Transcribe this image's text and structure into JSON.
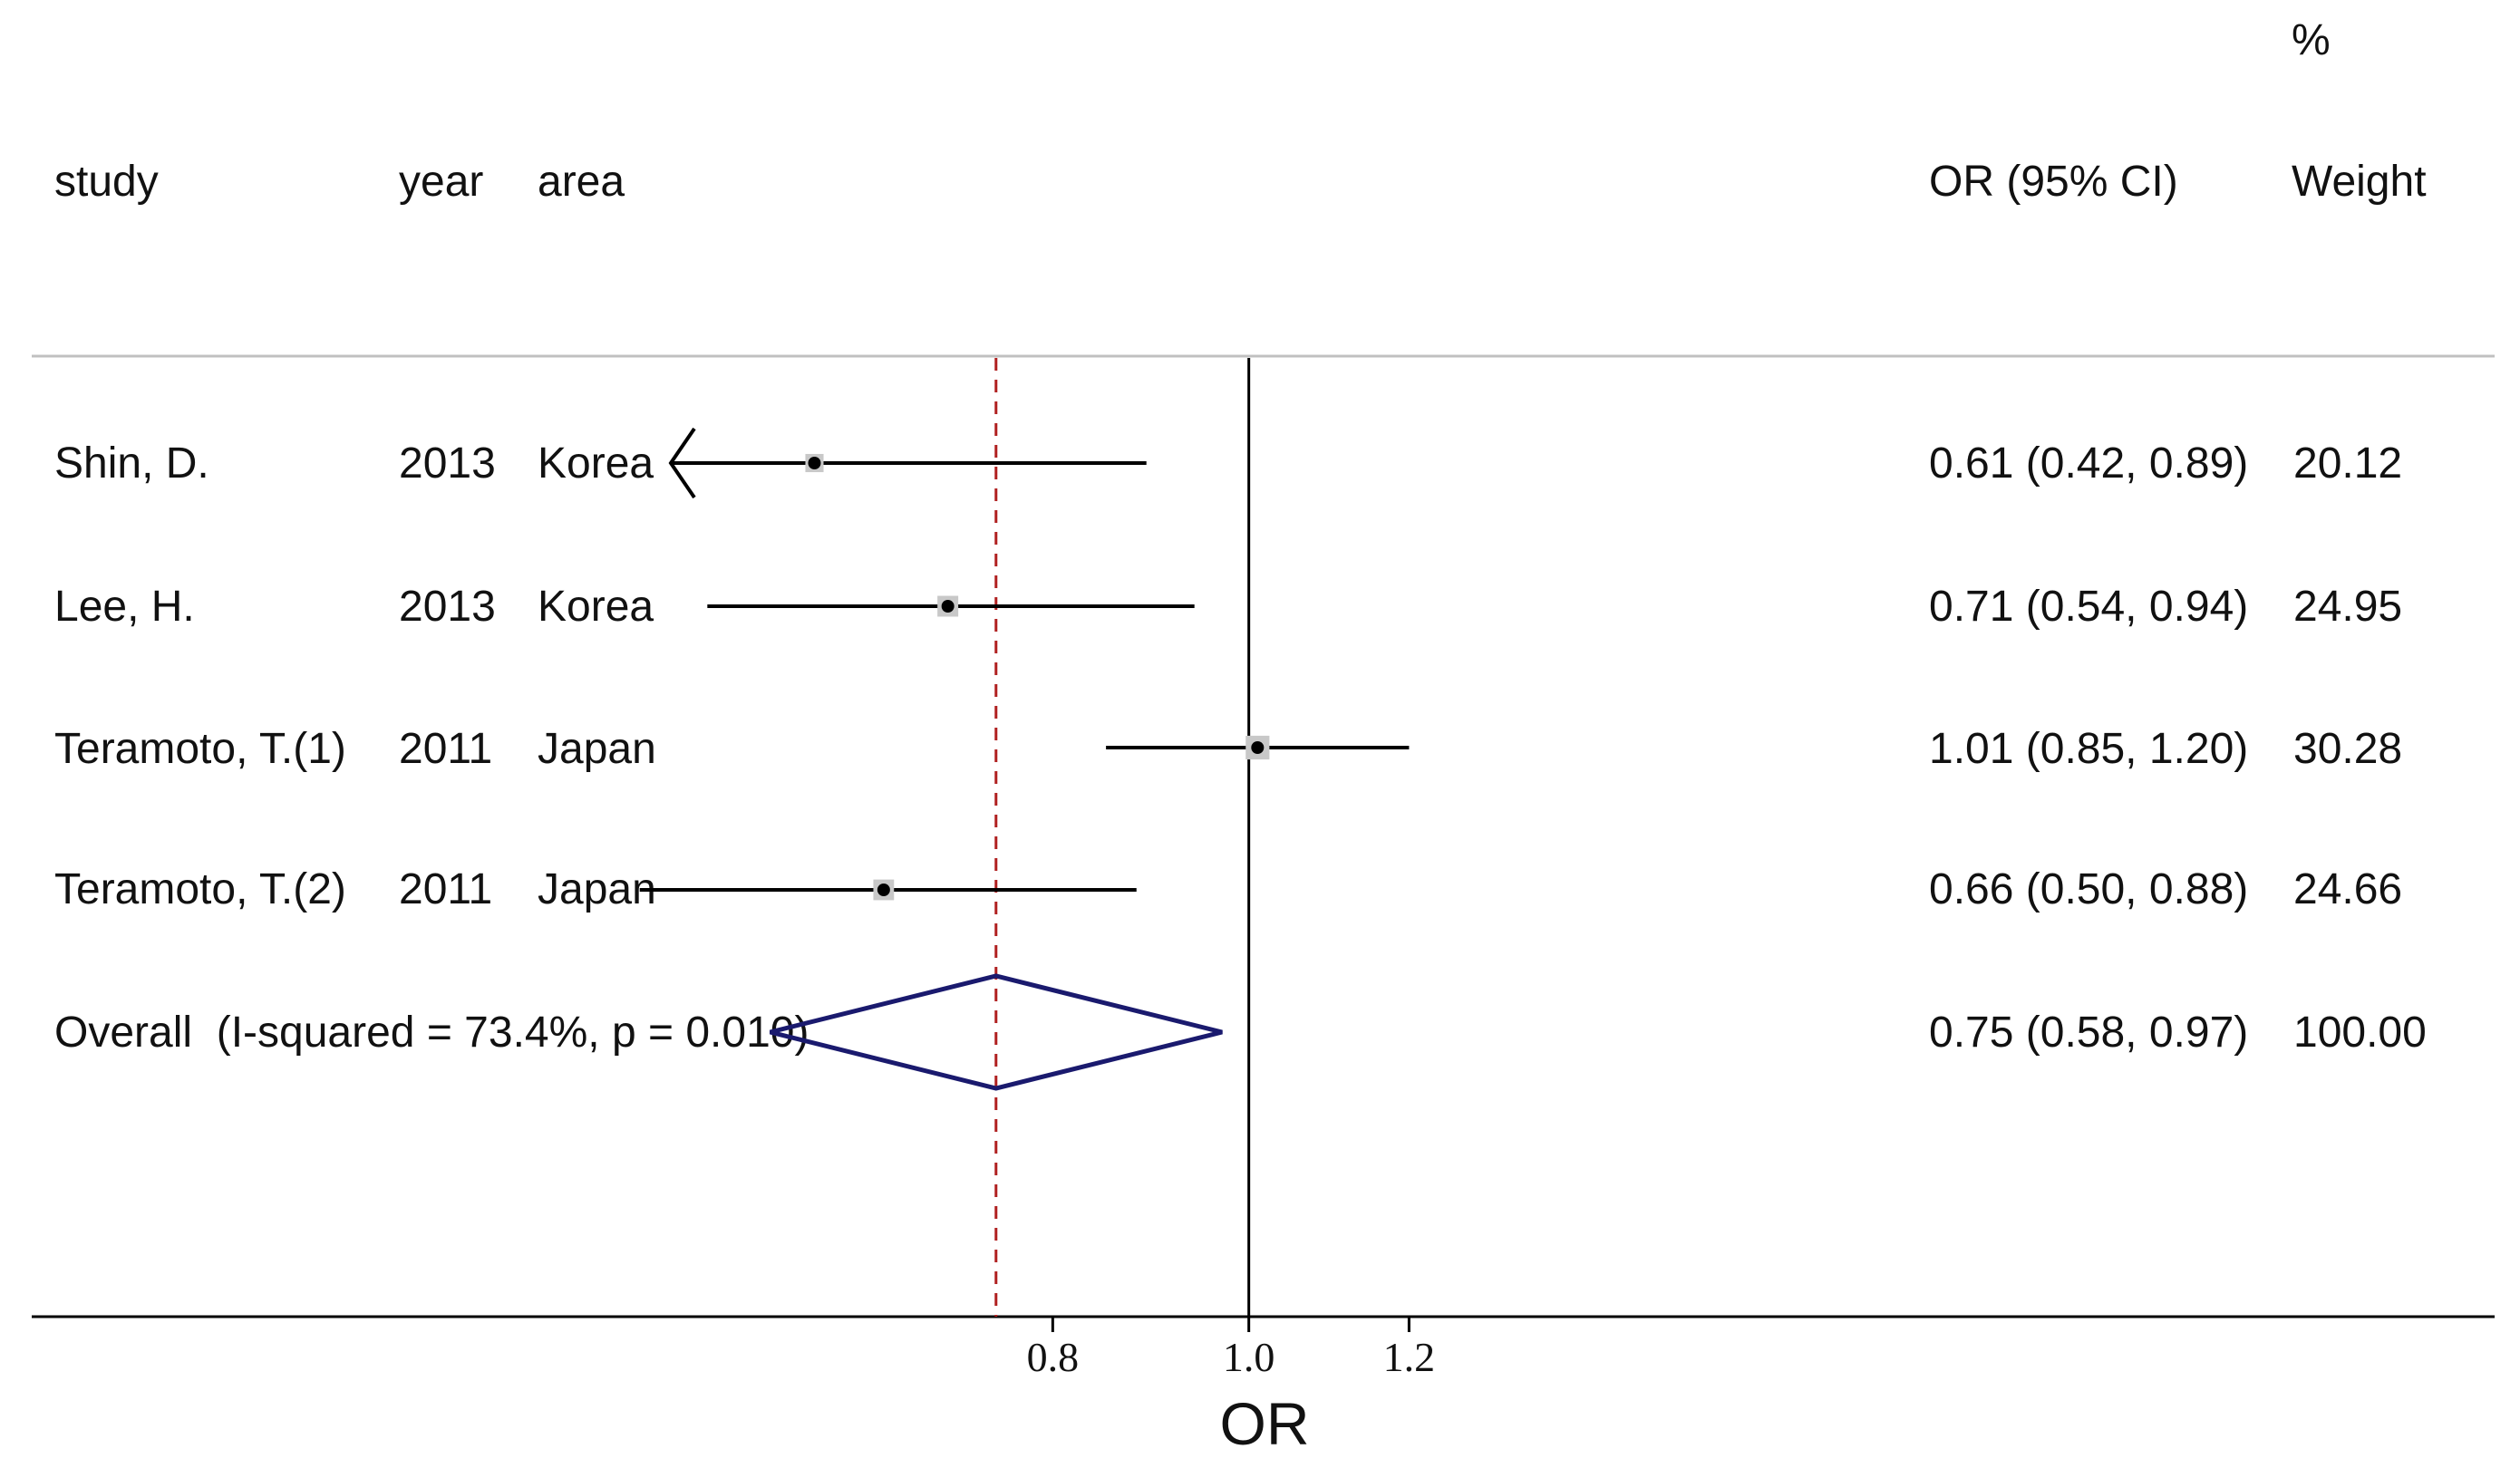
{
  "chart_data": {
    "type": "forest",
    "headers": {
      "study": "study",
      "year": "year",
      "area": "area",
      "or_ci": "OR (95% CI)",
      "weight_pct": "%",
      "weight": "Weight"
    },
    "studies": [
      {
        "study": "Shin, D.",
        "year": "2013",
        "area": "Korea",
        "or": 0.61,
        "ci": [
          0.42,
          0.89
        ],
        "or_text": "0.61 (0.42, 0.89)",
        "weight": "20.12",
        "clipped_low": true
      },
      {
        "study": "Lee, H.",
        "year": "2013",
        "area": "Korea",
        "or": 0.71,
        "ci": [
          0.54,
          0.94
        ],
        "or_text": "0.71 (0.54, 0.94)",
        "weight": "24.95",
        "clipped_low": false
      },
      {
        "study": "Teramoto, T.(1)",
        "year": "2011",
        "area": "Japan",
        "or": 1.01,
        "ci": [
          0.85,
          1.2
        ],
        "or_text": "1.01 (0.85, 1.20)",
        "weight": "30.28",
        "clipped_low": false
      },
      {
        "study": "Teramoto, T.(2)",
        "year": "2011",
        "area": "Japan",
        "or": 0.66,
        "ci": [
          0.5,
          0.88
        ],
        "or_text": "0.66 (0.50, 0.88)",
        "weight": "24.66",
        "clipped_low": false
      }
    ],
    "overall": {
      "label": "Overall  (I-squared = 73.4%, p = 0.010)",
      "or": 0.75,
      "ci": [
        0.58,
        0.97
      ],
      "or_text": "0.75 (0.58, 0.97)",
      "weight": "100.00"
    },
    "null_line": 1.0,
    "x_scale": "log",
    "xlim": [
      0.518,
      1.284
    ],
    "x_ticks": [
      {
        "value": 0.8,
        "label": "0.8"
      },
      {
        "value": 1.0,
        "label": "1.0"
      },
      {
        "value": 1.2,
        "label": "1.2"
      }
    ],
    "xlabel": "OR",
    "colors": {
      "ci_line": "#000000",
      "weight_box": "#c8c8c8",
      "overall_diamond": "#1a1a6e",
      "overall_line": "#b02020",
      "null_line": "#000000",
      "separator": "#c0c0c0"
    }
  }
}
